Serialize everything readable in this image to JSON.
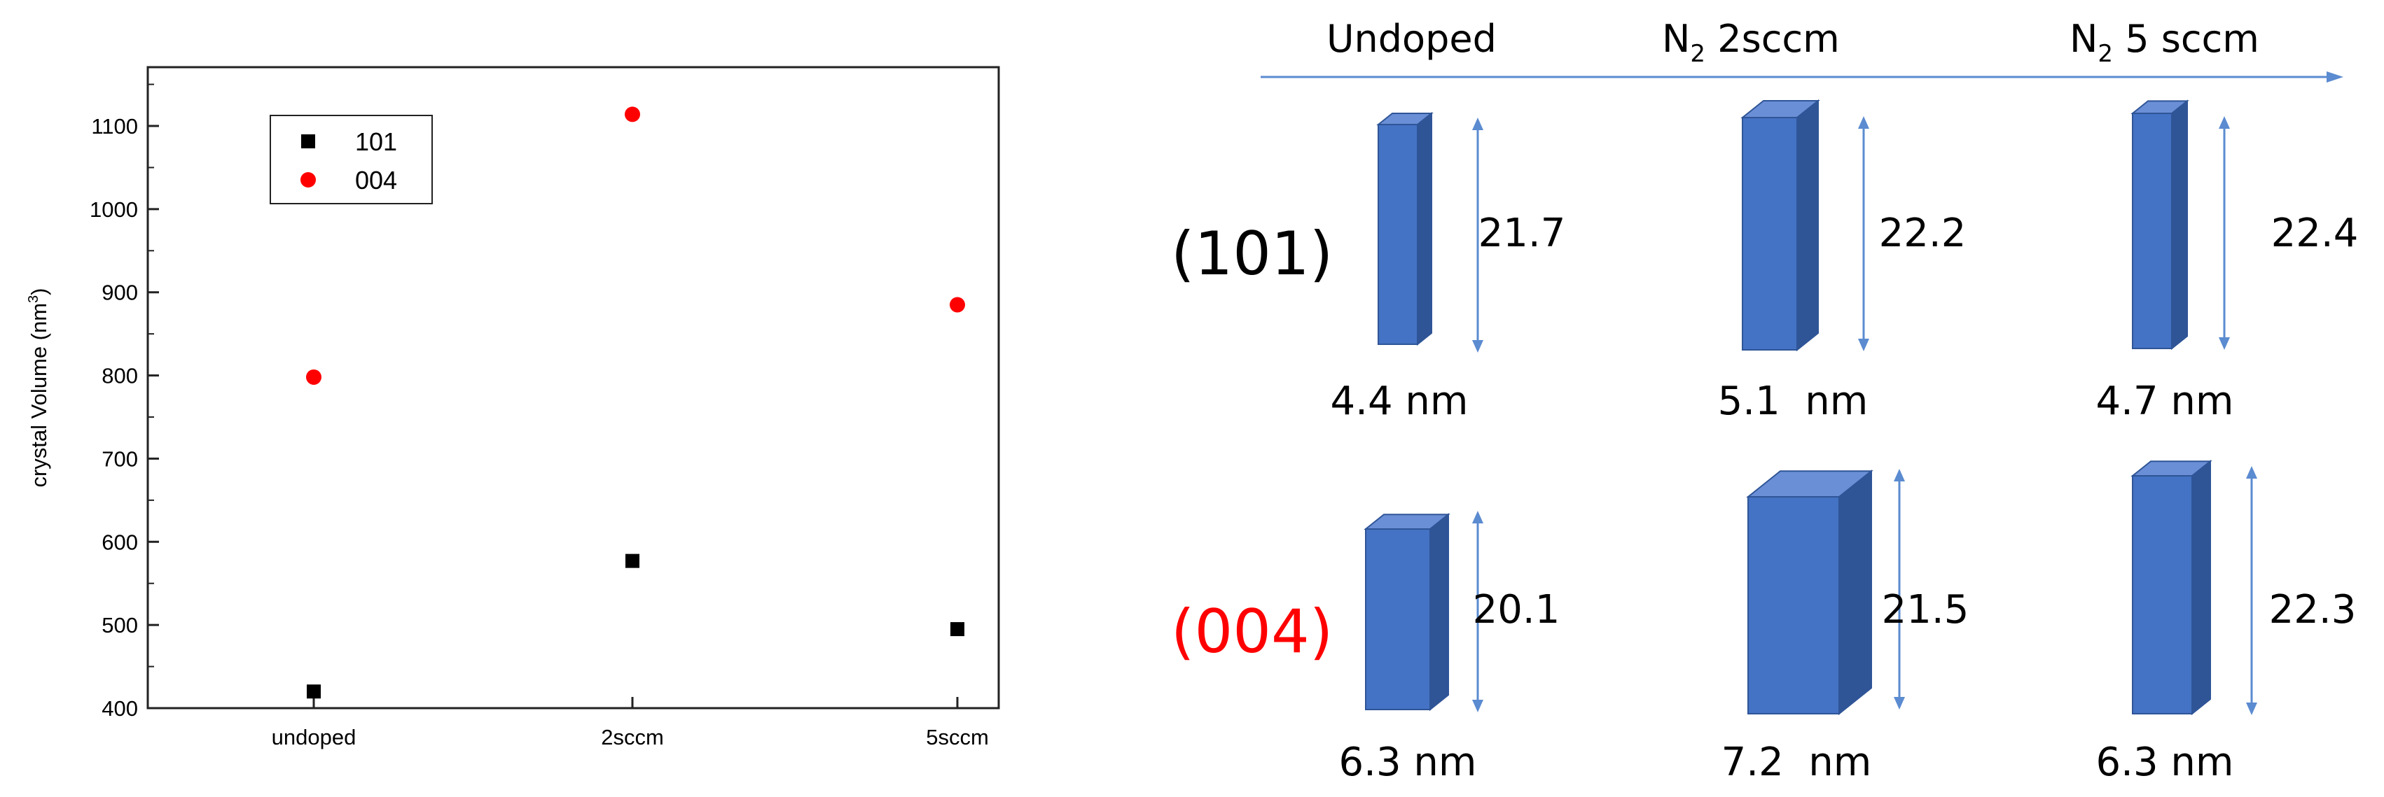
{
  "chart_data": {
    "type": "scatter",
    "ylabel": "crystal Volume (nm",
    "ylabel_sup": "3",
    "ylabel_end": ")",
    "xlabel": "",
    "categories": [
      "undoped",
      "2sccm",
      "5sccm"
    ],
    "ylim": [
      400,
      1150
    ],
    "yticks": [
      400,
      500,
      600,
      700,
      800,
      900,
      1000,
      1100
    ],
    "grid": false,
    "legend_position": "top-left",
    "series": [
      {
        "name": "101",
        "marker": "square",
        "color": "#000000",
        "values": [
          420,
          577,
          495
        ]
      },
      {
        "name": "004",
        "marker": "circle",
        "color": "#ff0000",
        "values": [
          798,
          1114,
          885
        ]
      }
    ]
  },
  "diagram": {
    "columns": [
      {
        "text": "Undoped"
      },
      {
        "text": "N",
        "sub": "2",
        "rest": " 2sccm"
      },
      {
        "text": "N",
        "sub": "2",
        "rest": " 5 sccm"
      }
    ],
    "row_labels": [
      {
        "label": "(101)",
        "color": "#000000"
      },
      {
        "label": "(004)",
        "color": "#ff0000"
      }
    ],
    "rows": [
      [
        {
          "height": "21.7",
          "width": "4.4 nm"
        },
        {
          "height": "22.2",
          "width": "5.1  nm"
        },
        {
          "height": "22.4",
          "width": "4.7 nm"
        }
      ],
      [
        {
          "height": "20.1",
          "width": "6.3 nm"
        },
        {
          "height": "21.5",
          "width": "7.2  nm"
        },
        {
          "height": "22.3",
          "width": "6.3 nm"
        }
      ]
    ],
    "colors": {
      "box_front": "#4472c4",
      "box_top": "#6b8fd6",
      "box_side": "#2f5597",
      "arrow": "#5b8bd0"
    }
  }
}
